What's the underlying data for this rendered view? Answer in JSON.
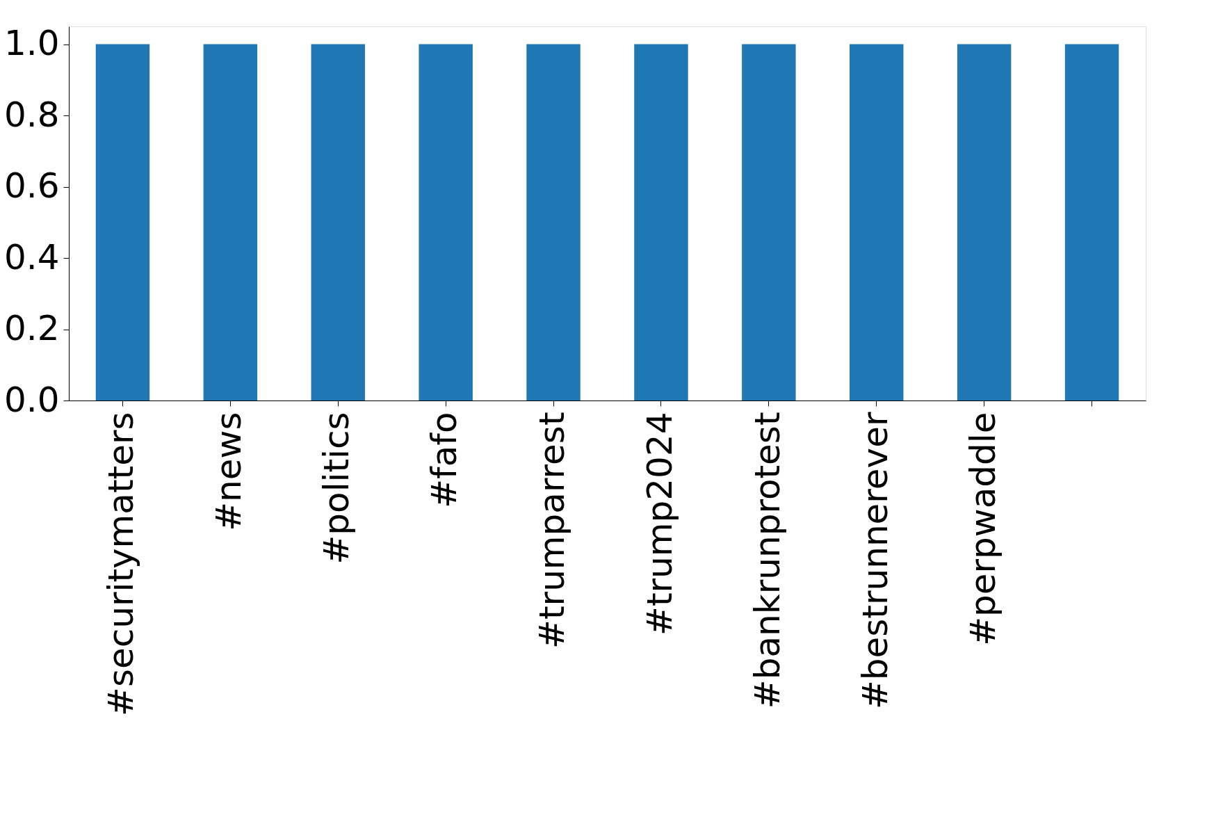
{
  "chart_data": {
    "type": "bar",
    "categories": [
      "#securitymatters",
      "#news",
      "#politics",
      "#fafo",
      "#trumparrest",
      "#trump2024",
      "#bankrunprotest",
      "#bestrunnerever",
      "#perpwaddle",
      null
    ],
    "values": [
      1.0,
      1.0,
      1.0,
      1.0,
      1.0,
      1.0,
      1.0,
      1.0,
      1.0,
      1.0
    ],
    "color": "#1f77b4",
    "ylim": [
      0,
      1.05
    ],
    "yticks": [
      {
        "value": 0,
        "label": "0.0"
      },
      {
        "value": 0.2,
        "label": "0.2"
      },
      {
        "value": 0.4,
        "label": "0.4"
      },
      {
        "value": 0.6,
        "label": "0.6"
      },
      {
        "value": 0.8,
        "label": "0.8"
      },
      {
        "value": 1.0,
        "label": "1.0"
      }
    ],
    "grid": false
  }
}
